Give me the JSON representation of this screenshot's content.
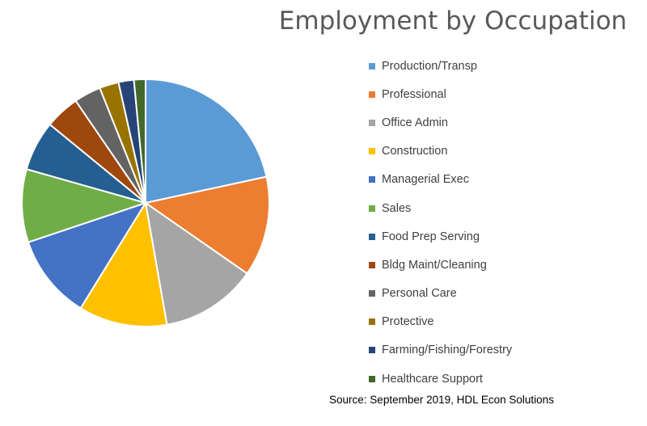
{
  "chart_data": {
    "type": "pie",
    "title": "Employment by Occupation",
    "source": "Source: September 2019, HDL Econ Solutions",
    "legend_position": "right",
    "slices": [
      {
        "label": "Production/Transp",
        "value": 21.5,
        "color": "#5B9BD5"
      },
      {
        "label": "Professional",
        "value": 13.0,
        "color": "#ED7D31"
      },
      {
        "label": "Office Admin",
        "value": 12.5,
        "color": "#A5A5A5"
      },
      {
        "label": "Construction",
        "value": 11.5,
        "color": "#FFC000"
      },
      {
        "label": "Managerial Exec",
        "value": 11.0,
        "color": "#4472C4"
      },
      {
        "label": "Sales",
        "value": 9.5,
        "color": "#70AD47"
      },
      {
        "label": "Food Prep Serving",
        "value": 6.5,
        "color": "#255E91"
      },
      {
        "label": "Bldg Maint/Cleaning",
        "value": 4.5,
        "color": "#9E480E"
      },
      {
        "label": "Personal Care",
        "value": 3.5,
        "color": "#636363"
      },
      {
        "label": "Protective",
        "value": 2.5,
        "color": "#997300"
      },
      {
        "label": "Farming/Fishing/Forestry",
        "value": 2.0,
        "color": "#264478"
      },
      {
        "label": "Healthcare Support",
        "value": 1.5,
        "color": "#43682B"
      }
    ]
  }
}
